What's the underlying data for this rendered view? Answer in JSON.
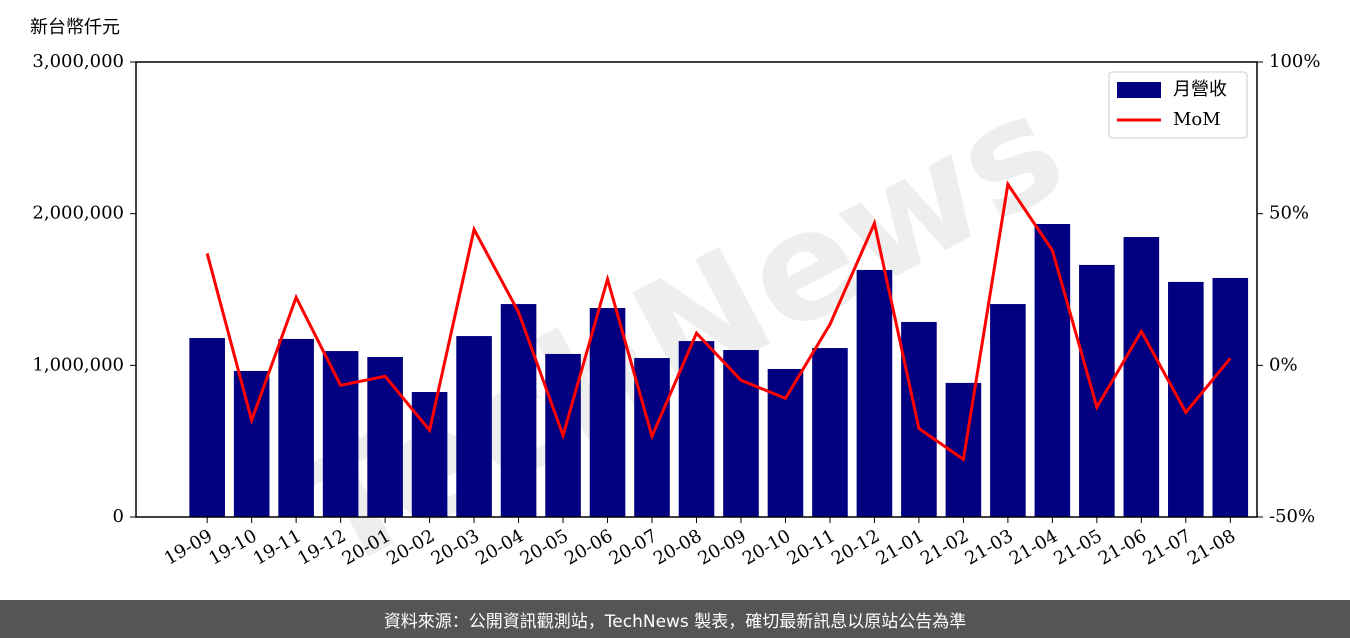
{
  "watermark": "TechNews",
  "footer": "資料來源：公開資訊觀測站，TechNews 製表，確切最新訊息以原站公告為準",
  "chart_data": {
    "type": "bar-line",
    "y_label": "新台幣仟元",
    "categories": [
      "19-09",
      "19-10",
      "19-11",
      "19-12",
      "20-01",
      "20-02",
      "20-03",
      "20-04",
      "20-05",
      "20-06",
      "20-07",
      "20-08",
      "20-09",
      "20-10",
      "20-11",
      "20-12",
      "21-01",
      "21-02",
      "21-03",
      "21-04",
      "21-05",
      "21-06",
      "21-07",
      "21-08"
    ],
    "series": [
      {
        "name": "月營收",
        "color": "#000080",
        "type": "bar",
        "values": [
          1180000,
          963000,
          1174000,
          1094000,
          1055000,
          824000,
          1193000,
          1404000,
          1075000,
          1378000,
          1048000,
          1160000,
          1101000,
          976000,
          1114000,
          1629000,
          1286000,
          884000,
          1404000,
          1932000,
          1662000,
          1846000,
          1550000,
          1576000
        ]
      },
      {
        "name": "MoM",
        "color": "#ff0000",
        "type": "line",
        "axis": "y2",
        "values": [
          36.9,
          -18.1,
          22.4,
          -6.6,
          -3.6,
          -21.4,
          44.8,
          17.5,
          -23.1,
          28.4,
          -23.4,
          10.6,
          -4.9,
          -10.9,
          13.5,
          46.8,
          -20.8,
          -31.0,
          59.7,
          37.9,
          -13.8,
          11.2,
          -15.5,
          2.3
        ]
      }
    ],
    "ylim": [
      0,
      3000000
    ],
    "yticks": [
      0,
      {
        "value": 1000000,
        "label": "1,000,000"
      },
      {
        "value": 2000000,
        "label": "2,000,000"
      },
      {
        "value": 3000000,
        "label": "3,000,000"
      }
    ],
    "y2lim": [
      -50,
      100
    ],
    "y2ticks": [
      {
        "value": -50,
        "label": "-50%"
      },
      {
        "value": 0,
        "label": "0%"
      },
      {
        "value": 50,
        "label": "50%"
      },
      {
        "value": 100,
        "label": "100%"
      }
    ],
    "grid": true,
    "legend": "upper right"
  }
}
